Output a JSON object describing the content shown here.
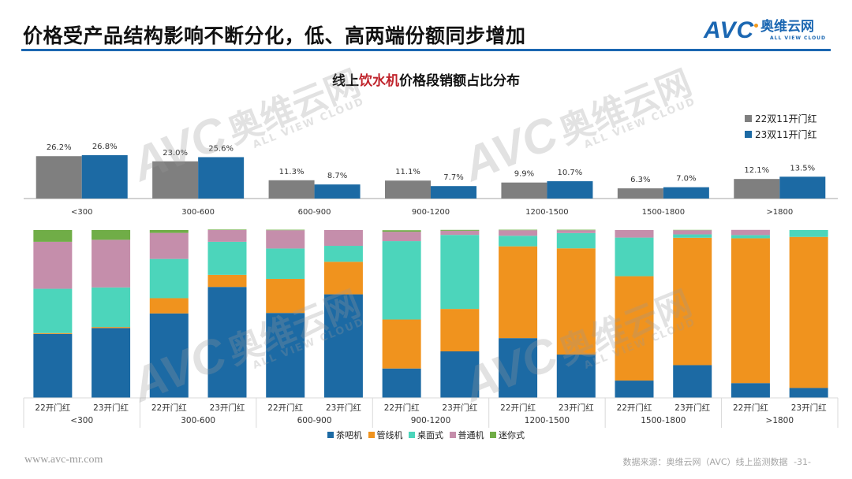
{
  "header": {
    "title": "价格受产品结构影响不断分化，低、高两端份额同步增加",
    "logo_mark": "AVC",
    "logo_cn": "奥维云网",
    "logo_en": "ALL VIEW CLOUD",
    "accent_color": "#1b67b2"
  },
  "watermark": {
    "mark": "AVC",
    "cn": "奥维云网",
    "en": "ALL VIEW CLOUD"
  },
  "chart_title": {
    "prefix": "线上",
    "highlight": "饮水机",
    "suffix": "价格段销额占比分布",
    "highlight_color": "#c0242c"
  },
  "chart_data": [
    {
      "type": "bar",
      "title": "线上饮水机价格段销额占比分布",
      "xlabel": "",
      "ylabel": "",
      "grid": false,
      "legend_position": "top-right",
      "categories": [
        "<300",
        "300-600",
        "600-900",
        "900-1200",
        "1200-1500",
        "1500-1800",
        ">1800"
      ],
      "series": [
        {
          "name": "22双11开门红",
          "color": "#7f7f7f",
          "values": [
            26.2,
            23.0,
            11.3,
            11.1,
            9.9,
            6.3,
            12.1
          ],
          "labels": [
            "26.2%",
            "23.0%",
            "11.3%",
            "11.1%",
            "9.9%",
            "6.3%",
            "12.1%"
          ]
        },
        {
          "name": "23双11开门红",
          "color": "#1c6aa4",
          "values": [
            26.8,
            25.6,
            8.7,
            7.7,
            10.7,
            7.0,
            13.5
          ],
          "labels": [
            "26.8%",
            "25.6%",
            "8.7%",
            "7.7%",
            "10.7%",
            "7.0%",
            "13.5%"
          ]
        }
      ],
      "ylim": [
        0,
        30
      ]
    },
    {
      "type": "bar",
      "stacked": true,
      "percent_stacked": true,
      "title": "",
      "xlabel": "",
      "ylabel": "",
      "grid": false,
      "legend_position": "bottom",
      "groups": [
        "<300",
        "300-600",
        "600-900",
        "900-1200",
        "1200-1500",
        "1500-1800",
        ">1800"
      ],
      "sub_categories": [
        "22开门红",
        "23开门红"
      ],
      "series": [
        {
          "name": "茶吧机",
          "color": "#1c6aa4",
          "values": [
            38.1,
            41.6,
            50.3,
            66.1,
            50.6,
            61.7,
            17.5,
            27.7,
            35.6,
            25.8,
            10.3,
            19.5,
            8.8,
            5.9
          ]
        },
        {
          "name": "管线机",
          "color": "#f0931e",
          "values": [
            0.5,
            0.6,
            9.1,
            7.2,
            20.3,
            19.4,
            29.2,
            25.3,
            54.7,
            63.3,
            62.2,
            75.9,
            86.3,
            90.0
          ]
        },
        {
          "name": "桌面式",
          "color": "#4cd5bb",
          "values": [
            26.4,
            23.6,
            23.4,
            19.7,
            18.1,
            9.5,
            46.7,
            44.1,
            6.3,
            9.1,
            23.0,
            2.0,
            1.9,
            4.1
          ]
        },
        {
          "name": "普通机",
          "color": "#c58eab",
          "values": [
            28.0,
            28.4,
            15.5,
            7.0,
            10.9,
            9.4,
            5.6,
            2.5,
            3.3,
            1.7,
            4.5,
            2.5,
            3.1,
            0.0
          ]
        },
        {
          "name": "迷你式",
          "color": "#70ad47",
          "values": [
            7.0,
            5.8,
            1.7,
            0.3,
            0.3,
            0.0,
            0.9,
            0.5,
            0.3,
            0.3,
            0.0,
            0.2,
            0.0,
            0.0
          ]
        }
      ],
      "ylim": [
        0,
        100
      ]
    }
  ],
  "footer": {
    "url": "www.avc-mr.com",
    "source": "数据来源：奥维云网（AVC）线上监测数据",
    "page": "-31-"
  }
}
